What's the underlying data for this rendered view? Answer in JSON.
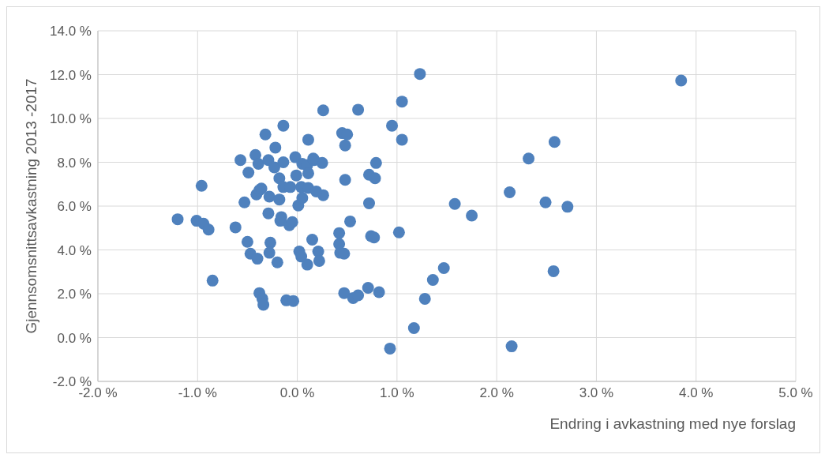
{
  "chart_data": {
    "type": "scatter",
    "xlabel": "Endring i avkastning med nye forslag",
    "ylabel": "Gjennsomsnittsavkastning 2013 -2017",
    "x": [
      -1.2,
      -1.01,
      -0.94,
      -0.89,
      -0.96,
      -0.85,
      -0.62,
      -0.57,
      -0.53,
      -0.5,
      -0.49,
      -0.47,
      -0.42,
      -0.41,
      -0.39,
      -0.4,
      -0.38,
      -0.36,
      -0.38,
      -0.35,
      -0.34,
      -0.32,
      -0.29,
      -0.29,
      -0.28,
      -0.27,
      -0.28,
      -0.22,
      -0.23,
      -0.18,
      -0.18,
      -0.17,
      -0.2,
      -0.16,
      -0.14,
      -0.14,
      -0.14,
      -0.11,
      -0.08,
      -0.05,
      -0.07,
      -0.02,
      -0.04,
      -0.01,
      0.01,
      0.04,
      0.05,
      0.05,
      0.02,
      0.04,
      0.1,
      0.11,
      0.1,
      0.11,
      0.11,
      0.15,
      0.17,
      0.21,
      0.22,
      0.25,
      0.26,
      0.26,
      0.19,
      0.16,
      0.43,
      0.42,
      0.42,
      0.45,
      0.5,
      0.48,
      0.48,
      0.47,
      0.47,
      0.53,
      0.56,
      0.61,
      0.61,
      0.72,
      0.78,
      0.79,
      0.72,
      0.74,
      0.77,
      0.71,
      0.82,
      0.95,
      0.93,
      1.02,
      1.05,
      1.05,
      1.23,
      1.17,
      1.28,
      1.36,
      1.47,
      1.58,
      1.75,
      2.13,
      2.15,
      2.32,
      2.49,
      2.57,
      2.58,
      2.71,
      3.85
    ],
    "series": [
      {
        "color": "#4f81bd",
        "values": [
          5.4,
          5.33,
          5.2,
          4.93,
          6.93,
          2.6,
          5.03,
          8.1,
          6.17,
          4.37,
          7.53,
          3.83,
          8.33,
          6.53,
          7.93,
          3.6,
          6.73,
          6.8,
          2.03,
          1.77,
          1.5,
          9.27,
          8.1,
          5.67,
          6.43,
          4.33,
          3.87,
          8.67,
          7.77,
          7.27,
          6.3,
          5.33,
          3.43,
          5.5,
          8.0,
          9.67,
          6.87,
          1.7,
          5.13,
          5.27,
          6.87,
          8.23,
          1.67,
          7.4,
          6.03,
          6.87,
          6.37,
          7.93,
          3.93,
          3.7,
          3.33,
          9.03,
          7.87,
          7.5,
          6.83,
          4.47,
          8.1,
          3.93,
          3.5,
          7.97,
          10.37,
          6.5,
          6.67,
          8.17,
          3.87,
          4.77,
          4.27,
          9.33,
          9.27,
          8.77,
          7.2,
          3.83,
          2.03,
          5.3,
          1.8,
          1.93,
          10.4,
          7.43,
          7.27,
          7.97,
          6.13,
          4.63,
          4.57,
          2.27,
          2.07,
          9.67,
          -0.5,
          4.8,
          9.03,
          10.77,
          12.03,
          0.43,
          1.77,
          2.63,
          3.17,
          6.1,
          5.57,
          6.63,
          -0.4,
          8.17,
          6.17,
          3.03,
          8.93,
          5.97,
          11.73
        ]
      }
    ],
    "xlim": [
      -2,
      5
    ],
    "ylim": [
      -2,
      14
    ],
    "xticks": [
      {
        "value": -2,
        "label": "-2.0 %"
      },
      {
        "value": -1,
        "label": "-1.0 %"
      },
      {
        "value": 0,
        "label": "0.0 %"
      },
      {
        "value": 1,
        "label": "1.0 %"
      },
      {
        "value": 2,
        "label": "2.0 %"
      },
      {
        "value": 3,
        "label": "3.0 %"
      },
      {
        "value": 4,
        "label": "4.0 %"
      },
      {
        "value": 5,
        "label": "5.0 %"
      }
    ],
    "yticks": [
      {
        "value": -2,
        "label": "-2.0 %"
      },
      {
        "value": 0,
        "label": "0.0 %"
      },
      {
        "value": 2,
        "label": "2.0 %"
      },
      {
        "value": 4,
        "label": "4.0 %"
      },
      {
        "value": 6,
        "label": "6.0 %"
      },
      {
        "value": 8,
        "label": "8.0 %"
      },
      {
        "value": 10,
        "label": "10.0 %"
      },
      {
        "value": 12,
        "label": "12.0 %"
      },
      {
        "value": 14,
        "label": "14.0 %"
      }
    ],
    "grid": true,
    "marker": "circle",
    "legend": false
  }
}
